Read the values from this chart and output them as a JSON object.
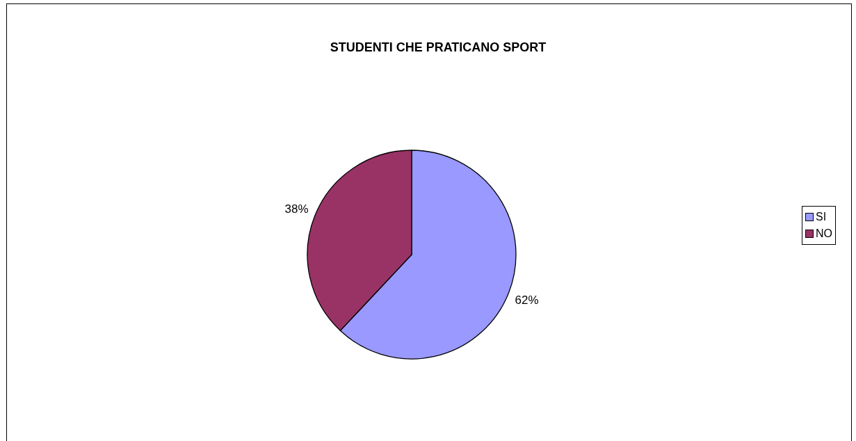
{
  "chart_data": {
    "type": "pie",
    "title": "STUDENTI CHE PRATICANO SPORT",
    "categories": [
      "SI",
      "NO"
    ],
    "values": [
      62,
      38
    ],
    "colors": [
      "#9999ff",
      "#993366"
    ],
    "value_labels": [
      "62%",
      "38%"
    ],
    "legend": "right"
  }
}
